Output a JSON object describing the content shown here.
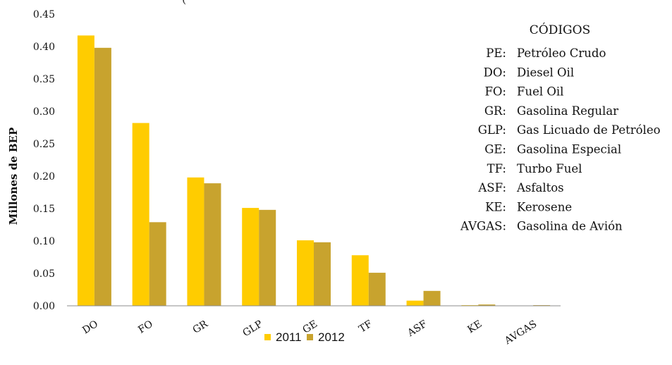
{
  "chart_data": {
    "type": "bar",
    "title_partial": "(",
    "ylabel": "Millones de BEP",
    "xlabel": "",
    "ylim": [
      0,
      0.45
    ],
    "yticks": [
      "0.00",
      "0.05",
      "0.10",
      "0.15",
      "0.20",
      "0.25",
      "0.30",
      "0.35",
      "0.40",
      "0.45"
    ],
    "categories": [
      "DO",
      "FO",
      "GR",
      "GLP",
      "GE",
      "TF",
      "ASF",
      "KE",
      "AVGAS"
    ],
    "series": [
      {
        "name": "2011",
        "color": "#FFCC00",
        "values": [
          0.417,
          0.282,
          0.198,
          0.151,
          0.101,
          0.078,
          0.008,
          0.001,
          0.0
        ]
      },
      {
        "name": "2012",
        "color": "#C8A32E",
        "values": [
          0.398,
          0.129,
          0.189,
          0.148,
          0.098,
          0.051,
          0.023,
          0.002,
          0.001
        ]
      }
    ],
    "legend_position": "bottom",
    "grid": false,
    "codes": {
      "title": "CÓDIGOS",
      "items": [
        {
          "code": "PE:",
          "label": "Petróleo Crudo"
        },
        {
          "code": "DO:",
          "label": "Diesel Oil"
        },
        {
          "code": "FO:",
          "label": "Fuel Oil"
        },
        {
          "code": "GR:",
          "label": "Gasolina Regular"
        },
        {
          "code": "GLP:",
          "label": "Gas Licuado de Petróleo"
        },
        {
          "code": "GE:",
          "label": "Gasolina Especial"
        },
        {
          "code": "TF:",
          "label": "Turbo Fuel"
        },
        {
          "code": "ASF:",
          "label": "Asfaltos"
        },
        {
          "code": "KE:",
          "label": "Kerosene"
        },
        {
          "code": "AVGAS:",
          "label": "Gasolina de Avión"
        }
      ]
    }
  }
}
